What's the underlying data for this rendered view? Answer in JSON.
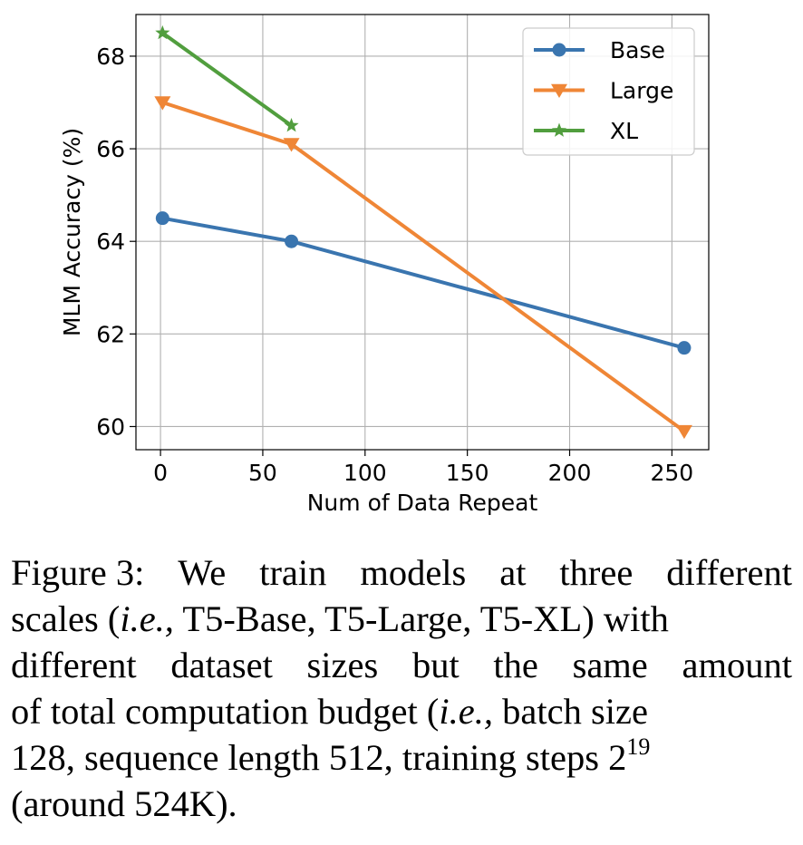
{
  "chart_data": {
    "type": "line",
    "xlabel": "Num of Data Repeat",
    "ylabel": "MLM Accuracy (%)",
    "xlim": [
      -12,
      268
    ],
    "ylim": [
      59.5,
      68.9
    ],
    "xticks": [
      0,
      50,
      100,
      150,
      200,
      250
    ],
    "yticks": [
      60,
      62,
      64,
      66,
      68
    ],
    "grid": true,
    "legend_position": "top-right",
    "series": [
      {
        "name": "Base",
        "color": "#3a75af",
        "marker": "circle",
        "x": [
          1,
          64,
          256
        ],
        "y": [
          64.5,
          64.0,
          61.7
        ]
      },
      {
        "name": "Large",
        "color": "#ef8636",
        "marker": "triangle-down",
        "x": [
          1,
          64,
          256
        ],
        "y": [
          67.0,
          66.1,
          59.9
        ]
      },
      {
        "name": "XL",
        "color": "#519e3e",
        "marker": "star",
        "x": [
          1,
          64
        ],
        "y": [
          68.5,
          66.5
        ]
      }
    ]
  },
  "caption": {
    "lines": [
      {
        "parts": [
          "Figure 3:",
          "We",
          "train",
          "models",
          "at",
          "three",
          "different"
        ]
      },
      {
        "parts": [
          "scales (",
          "i.e.,",
          " T5-Base, T5-Large, T5-XL) with"
        ]
      },
      {
        "parts": [
          "different",
          "dataset",
          "sizes",
          "but",
          "the",
          "same",
          "amount"
        ]
      },
      {
        "parts": [
          "of total computation budget (",
          "i.e.,",
          " batch size"
        ]
      },
      {
        "parts": [
          "128, sequence length 512, training steps 2",
          "19"
        ]
      },
      {
        "parts": [
          "(around 524K)."
        ]
      }
    ]
  }
}
